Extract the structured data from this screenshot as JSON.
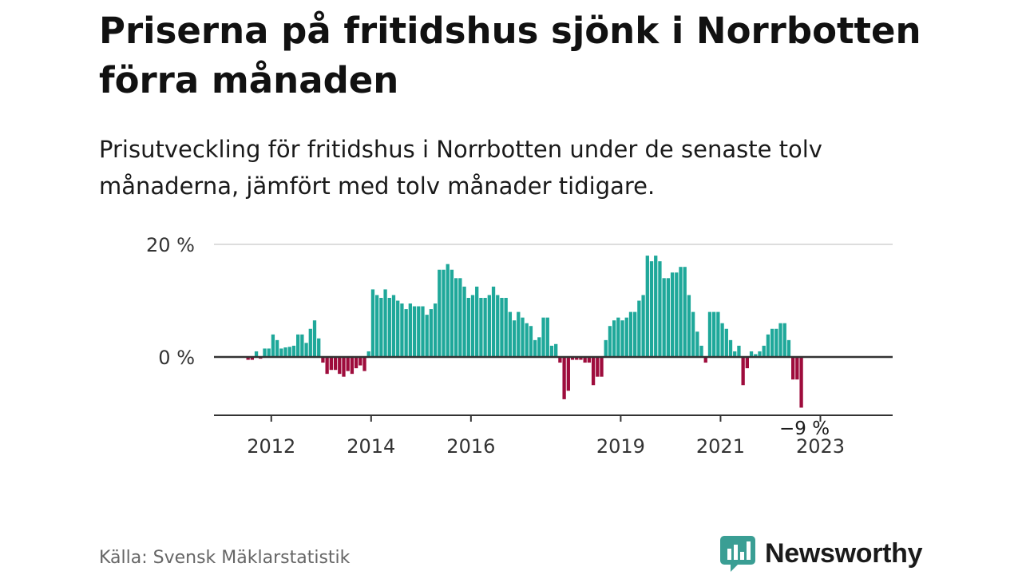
{
  "title": "Priserna på fritidshus sjönk i Norrbotten förra månaden",
  "subtitle": "Prisutveckling för fritidshus i Norrbotten under de senaste tolv månaderna, jämfört med tolv månader tidigare.",
  "source": "Källa: Svensk Mäklarstatistik",
  "brand": {
    "name": "Newsworthy",
    "color": "#3a9e94"
  },
  "chart_data": {
    "type": "bar",
    "title": "Priserna på fritidshus sjönk i Norrbotten förra månaden",
    "xlabel": "",
    "ylabel": "",
    "ylim": [
      -10,
      20
    ],
    "y_ticks": [
      {
        "value": 20,
        "label": "20 %"
      },
      {
        "value": 0,
        "label": "0 %"
      }
    ],
    "gridlines": true,
    "colors": {
      "positive": "#1fa89a",
      "negative": "#9e0c3c"
    },
    "start_year": 2011.5,
    "x_ticks": [
      {
        "year": 2012,
        "label": "2012"
      },
      {
        "year": 2014,
        "label": "2014"
      },
      {
        "year": 2016,
        "label": "2016"
      },
      {
        "year": 2019,
        "label": "2019"
      },
      {
        "year": 2021,
        "label": "2021"
      },
      {
        "year": 2023,
        "label": "2023"
      }
    ],
    "last_value_label": "−9 %",
    "values": [
      -0.5,
      -0.5,
      1,
      -0.3,
      1.5,
      1.5,
      4,
      3,
      1.5,
      1.7,
      1.8,
      2,
      4,
      4,
      2.5,
      5,
      6.5,
      3.3,
      -1,
      -3,
      -2.3,
      -2.3,
      -3,
      -3.5,
      -2.5,
      -3,
      -2,
      -1.5,
      -2.5,
      1,
      12,
      11,
      10.5,
      12,
      10.5,
      11,
      10,
      9.5,
      8.5,
      9.5,
      9,
      9,
      9,
      7.5,
      8.5,
      9.5,
      15.5,
      15.5,
      16.5,
      15.5,
      14,
      14,
      12.5,
      10.5,
      11,
      12.5,
      10.5,
      10.5,
      11,
      12.5,
      11,
      10.5,
      10.5,
      8,
      6.5,
      8,
      7,
      6,
      5.5,
      3,
      3.5,
      7,
      7,
      2,
      2.3,
      -1,
      -7.5,
      -6,
      -0.5,
      -0.5,
      -0.5,
      -1,
      -1,
      -5,
      -3.5,
      -3.5,
      3,
      5.5,
      6.5,
      7,
      6.5,
      7,
      8,
      8,
      10,
      11,
      18,
      17,
      18,
      17,
      14,
      14,
      15,
      15,
      16,
      16,
      11,
      8,
      4.5,
      2,
      -1,
      8,
      8,
      8,
      6,
      5,
      3,
      1,
      2,
      -5,
      -2,
      1,
      0.5,
      1,
      2,
      4,
      5,
      5,
      6,
      6,
      3,
      -4,
      -4,
      -9
    ]
  }
}
